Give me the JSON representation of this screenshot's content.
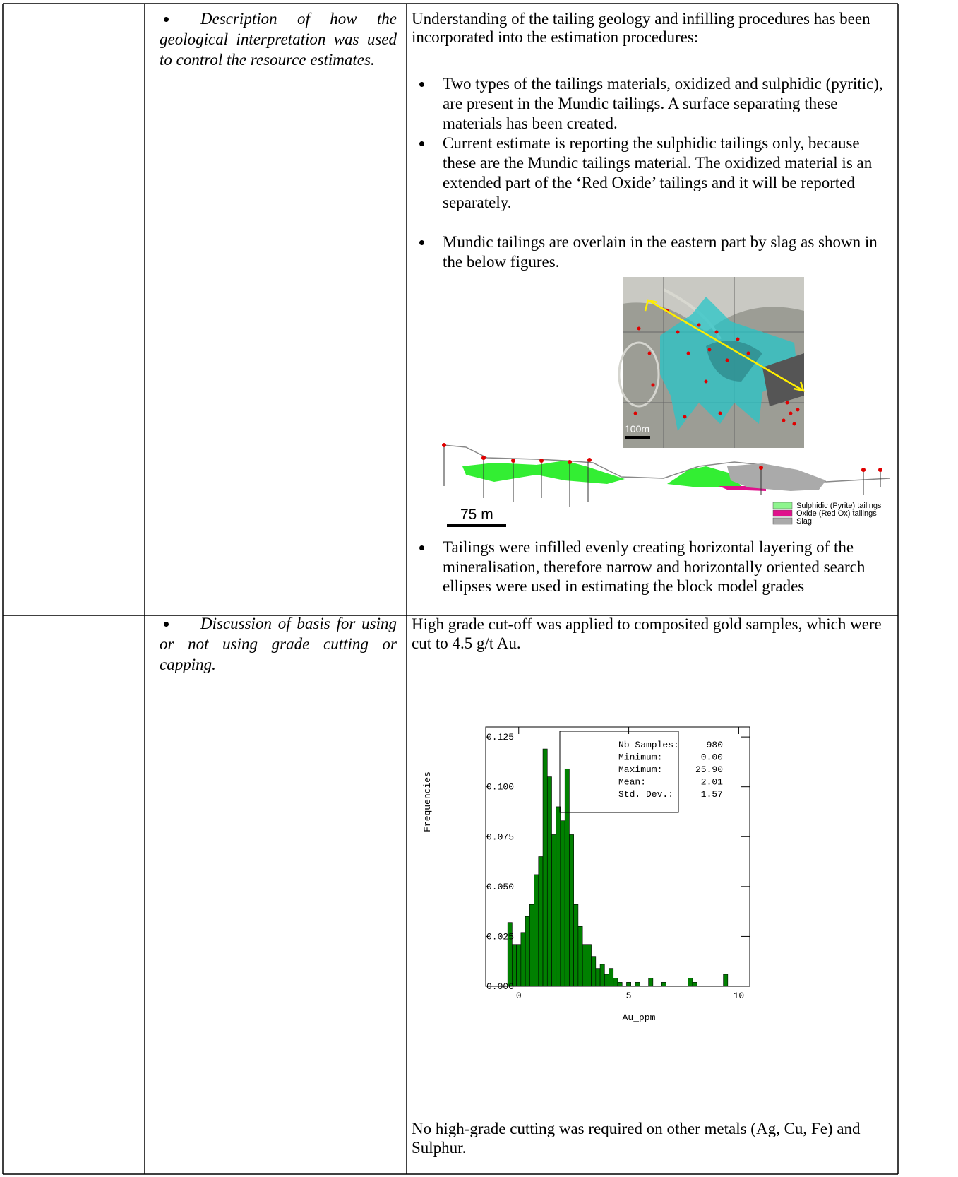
{
  "table": {
    "rows": [
      {
        "criteria": "Description of how the geological interpretation was used to control the resource estimates.",
        "commentary": {
          "intro": "Understanding of the tailing geology and infilling procedures has been incorporated into the estimation procedures:",
          "bullets": [
            "Two types of the tailings materials, oxidized and sulphidic (pyritic), are present in the Mundic tailings. A surface separating these materials has been created.",
            "Current estimate is reporting the sulphidic tailings only, because these are the Mundic tailings material. The oxidized material is an extended part of the ‘Red Oxide’ tailings and it will be reported separately.",
            "Mundic tailings are overlain in the eastern part by slag as shown in the below figures."
          ],
          "map_figure": {
            "scale_label": "100m"
          },
          "section_figure": {
            "scale_label": "75 m",
            "legend": [
              {
                "name": "Sulphidic (Pyrite) tailings",
                "color": "#8ef58e"
              },
              {
                "name": "Oxide (Red Ox) tailings",
                "color": "#e0118c"
              },
              {
                "name": "Slag",
                "color": "#aaaaaa"
              }
            ]
          },
          "bullets_after": [
            "Tailings were infilled evenly creating horizontal layering of the mineralisation, therefore narrow and horizontally oriented search ellipses were used in estimating the block model grades"
          ]
        }
      },
      {
        "criteria": "Discussion of basis for using or not using grade cutting or capping.",
        "commentary": {
          "intro": "High grade cut-off was applied to composited gold samples, which were cut to 4.5 g/t Au.",
          "histogram": {
            "type": "histogram",
            "x_label": "Au_ppm",
            "y_label": "Frequencies",
            "color": "#008000",
            "bins": [
              -0.5,
              -0.3,
              -0.1,
              0.1,
              0.3,
              0.5,
              0.7,
              0.9,
              1.1,
              1.3,
              1.5,
              1.7,
              1.9,
              2.1,
              2.3,
              2.5,
              2.7,
              2.9,
              3.1,
              3.3,
              3.5,
              3.7,
              3.9,
              4.1,
              4.3,
              4.5,
              4.7,
              4.9,
              5.1,
              5.3,
              5.5,
              5.7,
              5.9,
              6.1,
              6.3,
              6.5,
              6.7,
              6.9,
              7.1,
              7.3,
              7.5,
              7.7,
              7.9,
              8.1,
              8.3,
              8.5,
              8.7,
              8.9,
              9.1,
              9.3,
              9.5,
              9.7,
              9.9
            ],
            "counts": [
              0.032,
              0.021,
              0.021,
              0.027,
              0.035,
              0.041,
              0.056,
              0.065,
              0.119,
              0.105,
              0.076,
              0.09,
              0.083,
              0.109,
              0.076,
              0.041,
              0.03,
              0.021,
              0.021,
              0.015,
              0.009,
              0.011,
              0.006,
              0.009,
              0.004,
              0.002,
              0,
              0.002,
              0,
              0.002,
              0,
              0,
              0.004,
              0,
              0,
              0.002,
              0,
              0,
              0,
              0,
              0,
              0.004,
              0.002,
              0,
              0,
              0,
              0,
              0,
              0,
              0.006,
              0,
              0
            ],
            "xlim": [
              -1.5,
              10.5
            ],
            "ylim": [
              0,
              0.13
            ],
            "xticks": [
              0,
              5,
              10
            ],
            "yticks": [
              {
                "value": 0,
                "label": "0.000"
              },
              {
                "value": 0.025,
                "label": "0.025"
              },
              {
                "value": 0.05,
                "label": "0.050"
              },
              {
                "value": 0.075,
                "label": "0.075"
              },
              {
                "value": 0.1,
                "label": "0.100"
              },
              {
                "value": 0.125,
                "label": "0.125"
              }
            ],
            "stats": [
              {
                "label": "Nb Samples:",
                "value": "980"
              },
              {
                "label": "Minimum:",
                "value": "0.00"
              },
              {
                "label": "Maximum:",
                "value": "25.90"
              },
              {
                "label": "Mean:",
                "value": "2.01"
              },
              {
                "label": "Std. Dev.:",
                "value": "1.57"
              }
            ]
          },
          "outro": "No high-grade cutting was required on other metals (Ag, Cu, Fe) and Sulphur."
        }
      }
    ]
  }
}
